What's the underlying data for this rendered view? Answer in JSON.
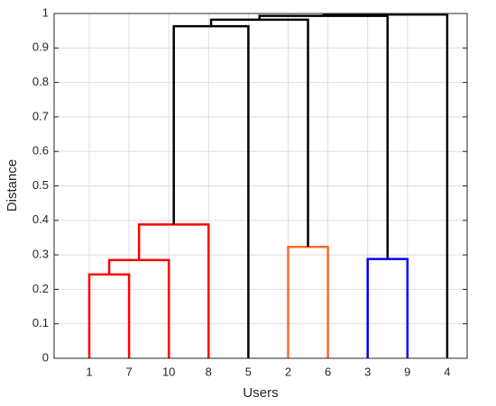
{
  "chart_data": {
    "type": "dendrogram",
    "xlabel": "Users",
    "ylabel": "Distance",
    "categories": [
      "1",
      "7",
      "10",
      "8",
      "5",
      "2",
      "6",
      "3",
      "9",
      "4"
    ],
    "links": [
      {
        "children": [
          0,
          1
        ],
        "height": 0.243,
        "color": "#ff0000"
      },
      {
        "children": [
          10,
          2
        ],
        "height": 0.285,
        "color": "#ff0000"
      },
      {
        "children": [
          11,
          3
        ],
        "height": 0.388,
        "color": "#ff0000"
      },
      {
        "children": [
          5,
          6
        ],
        "height": 0.323,
        "color": "#ff6a2a"
      },
      {
        "children": [
          7,
          8
        ],
        "height": 0.288,
        "color": "#0000ff"
      },
      {
        "children": [
          12,
          4
        ],
        "height": 0.963,
        "color": "#000000"
      },
      {
        "children": [
          15,
          13
        ],
        "height": 0.982,
        "color": "#000000"
      },
      {
        "children": [
          16,
          14
        ],
        "height": 0.993,
        "color": "#000000"
      },
      {
        "children": [
          17,
          9
        ],
        "height": 0.997,
        "color": "#000000"
      }
    ],
    "ylim": [
      0,
      1
    ],
    "yticks": [
      0,
      0.1,
      0.2,
      0.3,
      0.4,
      0.5,
      0.6,
      0.7,
      0.8,
      0.9,
      1
    ],
    "grid": true
  }
}
